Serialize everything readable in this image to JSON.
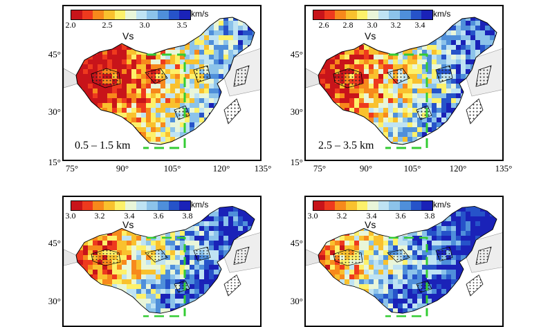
{
  "colors": {
    "scale": [
      "#c8141a",
      "#ee3a1e",
      "#f7891c",
      "#f9c12e",
      "#fdf16a",
      "#e9f6d9",
      "#bfe3f3",
      "#8cc3ea",
      "#4f8fda",
      "#2653c9",
      "#1a22b8"
    ],
    "study_box": "#33cc33",
    "outline": "#000000",
    "hatch": "#222222",
    "basin_grey": "#cccccc"
  },
  "panels": [
    {
      "velocity_label": "Vs",
      "unit": "km/s",
      "ticks": [
        "2.0",
        "2.5",
        "3.0",
        "3.5"
      ],
      "depth": "0.5 – 1.5 km",
      "lat_ticks": [
        "45°",
        "30°",
        "15°"
      ],
      "lon_ticks": [
        "75°",
        "90°",
        "105°",
        "120°",
        "135°"
      ]
    },
    {
      "velocity_label": "Vs",
      "unit": "km/s",
      "ticks": [
        "2.6",
        "2.8",
        "3.0",
        "3.2",
        "3.4"
      ],
      "depth": "2.5 – 3.5 km",
      "lat_ticks": [
        "45°",
        "30°",
        "15°"
      ],
      "lon_ticks": [
        "75°",
        "90°",
        "105°",
        "120°",
        "135°"
      ]
    },
    {
      "velocity_label": "Vs",
      "unit": "km/s",
      "ticks": [
        "3.0",
        "3.2",
        "3.4",
        "3.6",
        "3.8"
      ],
      "depth": "",
      "lat_ticks": [
        "45°",
        "30°"
      ],
      "lon_ticks": []
    },
    {
      "velocity_label": "Vs",
      "unit": "km/s",
      "ticks": [
        "3.0",
        "3.2",
        "3.4",
        "3.6",
        "3.8"
      ],
      "depth": "",
      "lat_ticks": [
        "45°",
        "30°"
      ],
      "lon_ticks": []
    }
  ]
}
